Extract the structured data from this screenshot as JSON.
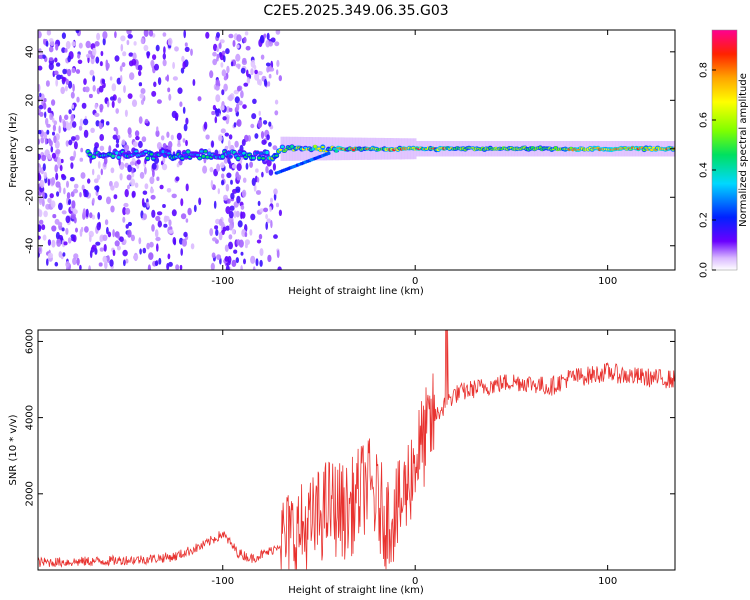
{
  "chart_data": [
    {
      "type": "heatmap",
      "title": "C2E5.2025.349.06.35.G03",
      "xlabel": "Height of straight line (km)",
      "ylabel": "Frequency (Hz)",
      "xlim": [
        -196,
        135
      ],
      "ylim": [
        -50,
        49
      ],
      "xticks": [
        -100,
        0,
        100
      ],
      "yticks": [
        -40,
        -20,
        0,
        20,
        40
      ],
      "colorbar": {
        "label": "Normalized spectral amplitude",
        "range": [
          0,
          0.96
        ],
        "ticks": [
          0.0,
          0.2,
          0.4,
          0.6,
          0.8
        ],
        "colormap": [
          "#ffffff",
          "#d9b8ff",
          "#6a00ff",
          "#0022ff",
          "#00d8ff",
          "#00e060",
          "#7fff00",
          "#ffff00",
          "#ffa500",
          "#ff2200",
          "#ff0090"
        ]
      },
      "ridge": {
        "frequency_hz": 0,
        "start_km": -170,
        "end_km": 135,
        "peak_amplitude": 0.95
      }
    },
    {
      "type": "line",
      "xlabel": "Height of straight line (km)",
      "ylabel": "SNR (10 * v/v)",
      "xlim": [
        -196,
        135
      ],
      "ylim": [
        0,
        6300
      ],
      "xticks": [
        -100,
        0,
        100
      ],
      "yticks": [
        2000,
        4000,
        6000
      ],
      "color": "#e8322f",
      "series": [
        {
          "name": "SNR",
          "x": [
            -196,
            -180,
            -160,
            -140,
            -125,
            -110,
            -100,
            -92,
            -85,
            -75,
            -65,
            -55,
            -45,
            -35,
            -25,
            -15,
            -8,
            0,
            10,
            20,
            30,
            40,
            50,
            60,
            70,
            80,
            90,
            100,
            110,
            120,
            135
          ],
          "y": [
            200,
            210,
            240,
            280,
            350,
            650,
            950,
            450,
            300,
            500,
            900,
            1100,
            1700,
            1500,
            2300,
            1300,
            1600,
            2900,
            4000,
            4600,
            4750,
            4850,
            4950,
            4900,
            4800,
            5050,
            5100,
            5200,
            5100,
            5050,
            5000
          ]
        }
      ]
    }
  ]
}
